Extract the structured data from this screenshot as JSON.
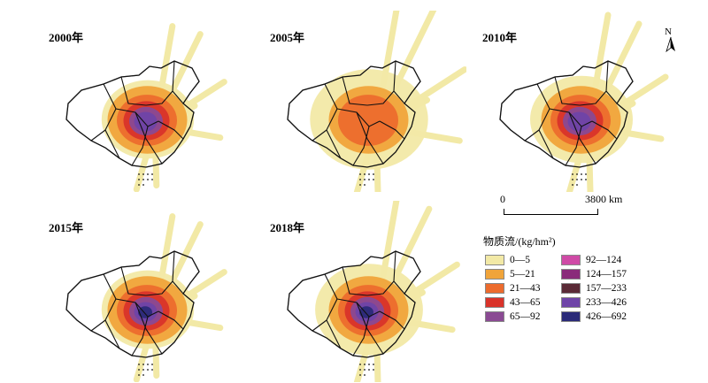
{
  "panels": [
    {
      "year_label": "2000年",
      "intensity": 3,
      "spread": 0.9
    },
    {
      "year_label": "2005年",
      "intensity": 1,
      "spread": 1.15
    },
    {
      "year_label": "2010年",
      "intensity": 3,
      "spread": 1.0
    },
    {
      "year_label": "2015年",
      "intensity": 4,
      "spread": 0.9
    },
    {
      "year_label": "2018年",
      "intensity": 4,
      "spread": 1.05
    }
  ],
  "north_arrow": {
    "label": "N",
    "icon": "north-arrow-icon"
  },
  "scale_bar": {
    "zero": "0",
    "max_label": "3800 km"
  },
  "legend": {
    "title": "物质流/(kg/hm²)",
    "classes": [
      {
        "label": "0—5",
        "color": "#f2e9a6"
      },
      {
        "label": "5—21",
        "color": "#f0a43a"
      },
      {
        "label": "21—43",
        "color": "#ec6b2d"
      },
      {
        "label": "43—65",
        "color": "#d9332a"
      },
      {
        "label": "65—92",
        "color": "#8a4a93"
      },
      {
        "label": "92—124",
        "color": "#cf4aa6"
      },
      {
        "label": "124—157",
        "color": "#8a2a7a"
      },
      {
        "label": "157—233",
        "color": "#5a2a36"
      },
      {
        "label": "233—426",
        "color": "#6f45a8"
      },
      {
        "label": "426—692",
        "color": "#2a2a78"
      }
    ]
  }
}
